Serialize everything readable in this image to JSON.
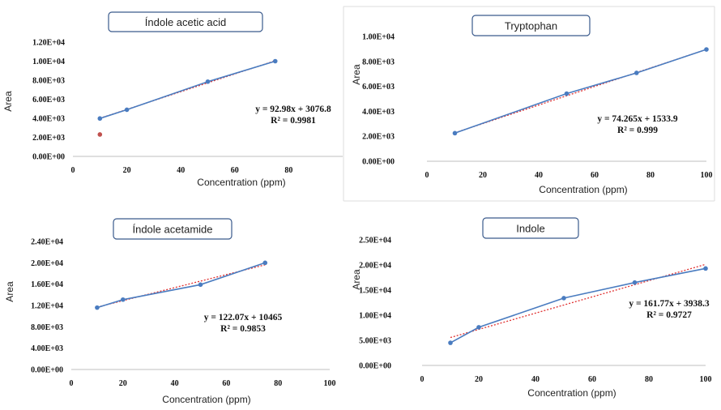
{
  "chart_data": [
    {
      "type": "scatter",
      "title": "Índole acetic acid",
      "xlabel": "Concentration (ppm)",
      "ylabel": "Area",
      "xlim": [
        0,
        100
      ],
      "ylim": [
        0,
        12000
      ],
      "xticks": [
        "0",
        "20",
        "40",
        "60",
        "80"
      ],
      "yticks": [
        "0.00E+00",
        "2.00E+03",
        "4.00E+03",
        "6.00E+03",
        "8.00E+03",
        "1.00E+04",
        "1.20E+04"
      ],
      "series": [
        {
          "values": [
            [
              10,
              3980
            ],
            [
              20,
              4900
            ],
            [
              50,
              7850
            ],
            [
              75,
              10000
            ]
          ],
          "color": "#4a7cc0"
        },
        {
          "values": [
            [
              10,
              2300
            ]
          ],
          "color": "#c0504d"
        }
      ],
      "trendline": {
        "slope": 92.98,
        "intercept": 3076.8,
        "color": "#e03030"
      },
      "equation": "y = 92.98x + 3076.8",
      "r2": "R² = 0.9981"
    },
    {
      "type": "scatter",
      "title": "Tryptophan",
      "xlabel": "Concentration (ppm)",
      "ylabel": "Area",
      "xlim": [
        0,
        100
      ],
      "ylim": [
        0,
        10000
      ],
      "xticks": [
        "0",
        "20",
        "40",
        "60",
        "80",
        "100"
      ],
      "yticks": [
        "0.00E+00",
        "2.00E+03",
        "4.00E+03",
        "6.00E+03",
        "8.00E+03",
        "1.00E+04"
      ],
      "series": [
        {
          "values": [
            [
              10,
              2250
            ],
            [
              50,
              5420
            ],
            [
              75,
              7080
            ],
            [
              100,
              8960
            ]
          ],
          "color": "#4a7cc0"
        }
      ],
      "trendline": {
        "slope": 74.265,
        "intercept": 1533.9,
        "color": "#e03030"
      },
      "equation": "y = 74.265x + 1533.9",
      "r2": "R² = 0.999"
    },
    {
      "type": "line",
      "title": "Índole acetamide",
      "xlabel": "Concentration (ppm)",
      "ylabel": "Area",
      "xlim": [
        0,
        100
      ],
      "ylim": [
        0,
        24000
      ],
      "xticks": [
        "0",
        "20",
        "40",
        "60",
        "80",
        "100"
      ],
      "yticks": [
        "0.00E+00",
        "4.00E+03",
        "8.00E+03",
        "1.20E+04",
        "1.60E+04",
        "2.00E+04",
        "2.40E+04"
      ],
      "series": [
        {
          "values": [
            [
              10,
              11600
            ],
            [
              20,
              13100
            ],
            [
              50,
              15900
            ],
            [
              75,
              20000
            ]
          ],
          "color": "#4a7cc0"
        }
      ],
      "trendline": {
        "slope": 122.07,
        "intercept": 10465,
        "color": "#e03030"
      },
      "equation": "y = 122.07x + 10465",
      "r2": "R² = 0.9853"
    },
    {
      "type": "line",
      "title": "Indole",
      "xlabel": "Concentration (ppm)",
      "ylabel": "Area",
      "xlim": [
        0,
        100
      ],
      "ylim": [
        0,
        25000
      ],
      "xticks": [
        "0",
        "20",
        "40",
        "60",
        "80",
        "100"
      ],
      "yticks": [
        "0.00E+00",
        "5.00E+03",
        "1.00E+04",
        "1.50E+04",
        "2.00E+04",
        "2.50E+04"
      ],
      "series": [
        {
          "values": [
            [
              10,
              4500
            ],
            [
              20,
              7600
            ],
            [
              50,
              13400
            ],
            [
              75,
              16500
            ],
            [
              100,
              19300
            ]
          ],
          "color": "#4a7cc0"
        }
      ],
      "trendline": {
        "slope": 161.77,
        "intercept": 3938.3,
        "color": "#e03030"
      },
      "equation": "y = 161.77x + 3938.3",
      "r2": "R² = 0.9727"
    }
  ]
}
